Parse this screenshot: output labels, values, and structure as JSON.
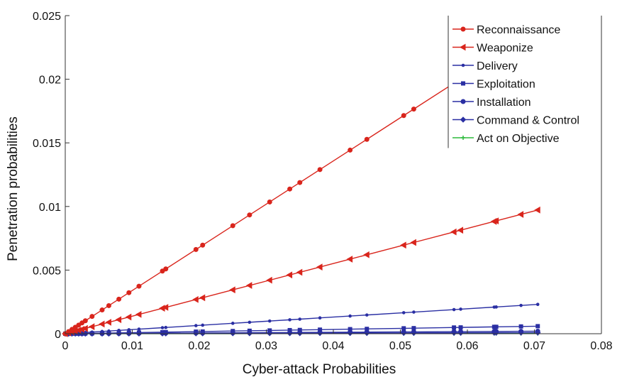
{
  "chart_data": {
    "type": "line",
    "xlabel": "Cyber-attack Probabilities",
    "ylabel": "Penetration probabilities",
    "xlim": [
      0,
      0.08
    ],
    "ylim": [
      0,
      0.025
    ],
    "xticks": [
      0,
      0.01,
      0.02,
      0.03,
      0.04,
      0.05,
      0.06,
      0.07,
      0.08
    ],
    "xtick_labels": [
      "0",
      "0.01",
      "0.02",
      "0.03",
      "0.04",
      "0.05",
      "0.06",
      "0.07",
      "0.08"
    ],
    "yticks": [
      0,
      0.005,
      0.01,
      0.015,
      0.02,
      0.025
    ],
    "ytick_labels": [
      "0",
      "0.005",
      "0.01",
      "0.015",
      "0.02",
      "0.025"
    ],
    "grid": false,
    "legend_position": "top-right",
    "x": [
      0,
      0.0005,
      0.001,
      0.0015,
      0.002,
      0.0025,
      0.003,
      0.004,
      0.0055,
      0.0065,
      0.008,
      0.0095,
      0.011,
      0.0145,
      0.015,
      0.0195,
      0.0205,
      0.025,
      0.0275,
      0.0305,
      0.0335,
      0.035,
      0.038,
      0.0425,
      0.045,
      0.0505,
      0.052,
      0.058,
      0.059,
      0.064,
      0.0643,
      0.068,
      0.0705
    ],
    "series": [
      {
        "name": "Reconnaissance",
        "color": "#d9251c",
        "marker": "circle",
        "slope": 0.3395
      },
      {
        "name": "Weaponize",
        "color": "#d9251c",
        "marker": "triangle-left",
        "slope": 0.1379
      },
      {
        "name": "Delivery",
        "color": "#2a2fa3",
        "marker": "point",
        "slope": 0.0327
      },
      {
        "name": "Exploitation",
        "color": "#2a2fa3",
        "marker": "square",
        "slope": 0.0084
      },
      {
        "name": "Installation",
        "color": "#2a2fa3",
        "marker": "circle",
        "slope": 0.0028
      },
      {
        "name": "Command & Control",
        "color": "#2a2fa3",
        "marker": "diamond",
        "slope": 0.0012
      },
      {
        "name": "Act on Objective",
        "color": "#2dba3c",
        "marker": "star",
        "slope": 0.0003
      }
    ]
  }
}
